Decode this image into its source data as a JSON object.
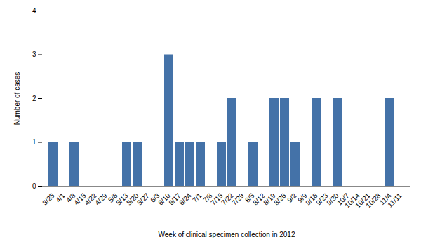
{
  "chart_data": {
    "type": "bar",
    "categories": [
      "3/25",
      "4/1",
      "4/8",
      "4/15",
      "4/22",
      "4/29",
      "5/6",
      "5/13",
      "5/20",
      "5/27",
      "6/3",
      "6/10",
      "6/17",
      "6/24",
      "7/1",
      "7/8",
      "7/15",
      "7/22",
      "7/29",
      "8/5",
      "8/12",
      "8/19",
      "8/26",
      "9/2",
      "9/9",
      "9/16",
      "9/23",
      "9/30",
      "10/7",
      "10/14",
      "10/21",
      "10/28",
      "11/4",
      "11/11"
    ],
    "values": [
      1,
      0,
      1,
      0,
      0,
      0,
      0,
      1,
      1,
      0,
      0,
      3,
      1,
      1,
      1,
      0,
      1,
      2,
      0,
      1,
      0,
      2,
      2,
      1,
      0,
      2,
      0,
      2,
      0,
      0,
      0,
      0,
      2,
      0
    ],
    "color": "#4472a8",
    "xlabel": "Week of clinical specimen collection in 2012",
    "ylabel": "Number of cases",
    "ylim": [
      0,
      4
    ],
    "yticks": [
      0,
      1,
      2,
      3,
      4
    ],
    "grid": false
  }
}
